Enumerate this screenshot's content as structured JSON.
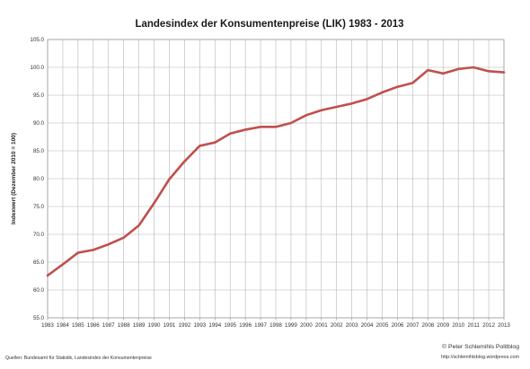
{
  "chart_data": {
    "type": "line",
    "title": "Landesindex der Konsumentenpreise (LIK) 1983 - 2013",
    "xlabel": "",
    "ylabel": "Indexwert (Dezember 2010 = 100)",
    "ylim": [
      55.0,
      105.0
    ],
    "y_ticks": [
      "55.0",
      "60.0",
      "65.0",
      "70.0",
      "75.0",
      "80.0",
      "85.0",
      "90.0",
      "95.0",
      "100.0",
      "105.0"
    ],
    "x": [
      "1983",
      "1984",
      "1985",
      "1986",
      "1987",
      "1988",
      "1989",
      "1990",
      "1991",
      "1992",
      "1993",
      "1994",
      "1995",
      "1996",
      "1997",
      "1998",
      "1999",
      "2000",
      "2001",
      "2002",
      "2003",
      "2004",
      "2005",
      "2006",
      "2007",
      "2008",
      "2009",
      "2010",
      "2011",
      "2012",
      "2013"
    ],
    "series": [
      {
        "name": "",
        "color": "#c0504d",
        "values": [
          62.6,
          64.6,
          66.7,
          67.2,
          68.2,
          69.4,
          71.6,
          75.6,
          79.9,
          83.1,
          85.9,
          86.5,
          88.1,
          88.8,
          89.3,
          89.3,
          90.0,
          91.4,
          92.3,
          92.9,
          93.5,
          94.3,
          95.5,
          96.5,
          97.2,
          99.5,
          98.9,
          99.7,
          100.0,
          99.3,
          99.1
        ]
      }
    ],
    "grid": true,
    "legend": "none"
  },
  "footer": {
    "source": "Quellen: Bundesamt für Statistik, Landesindex der Konsumentenpreise",
    "copyright": "© Peter Schlemihls Politblog",
    "url": "http://schlemihlsblog.wordpress.com"
  }
}
